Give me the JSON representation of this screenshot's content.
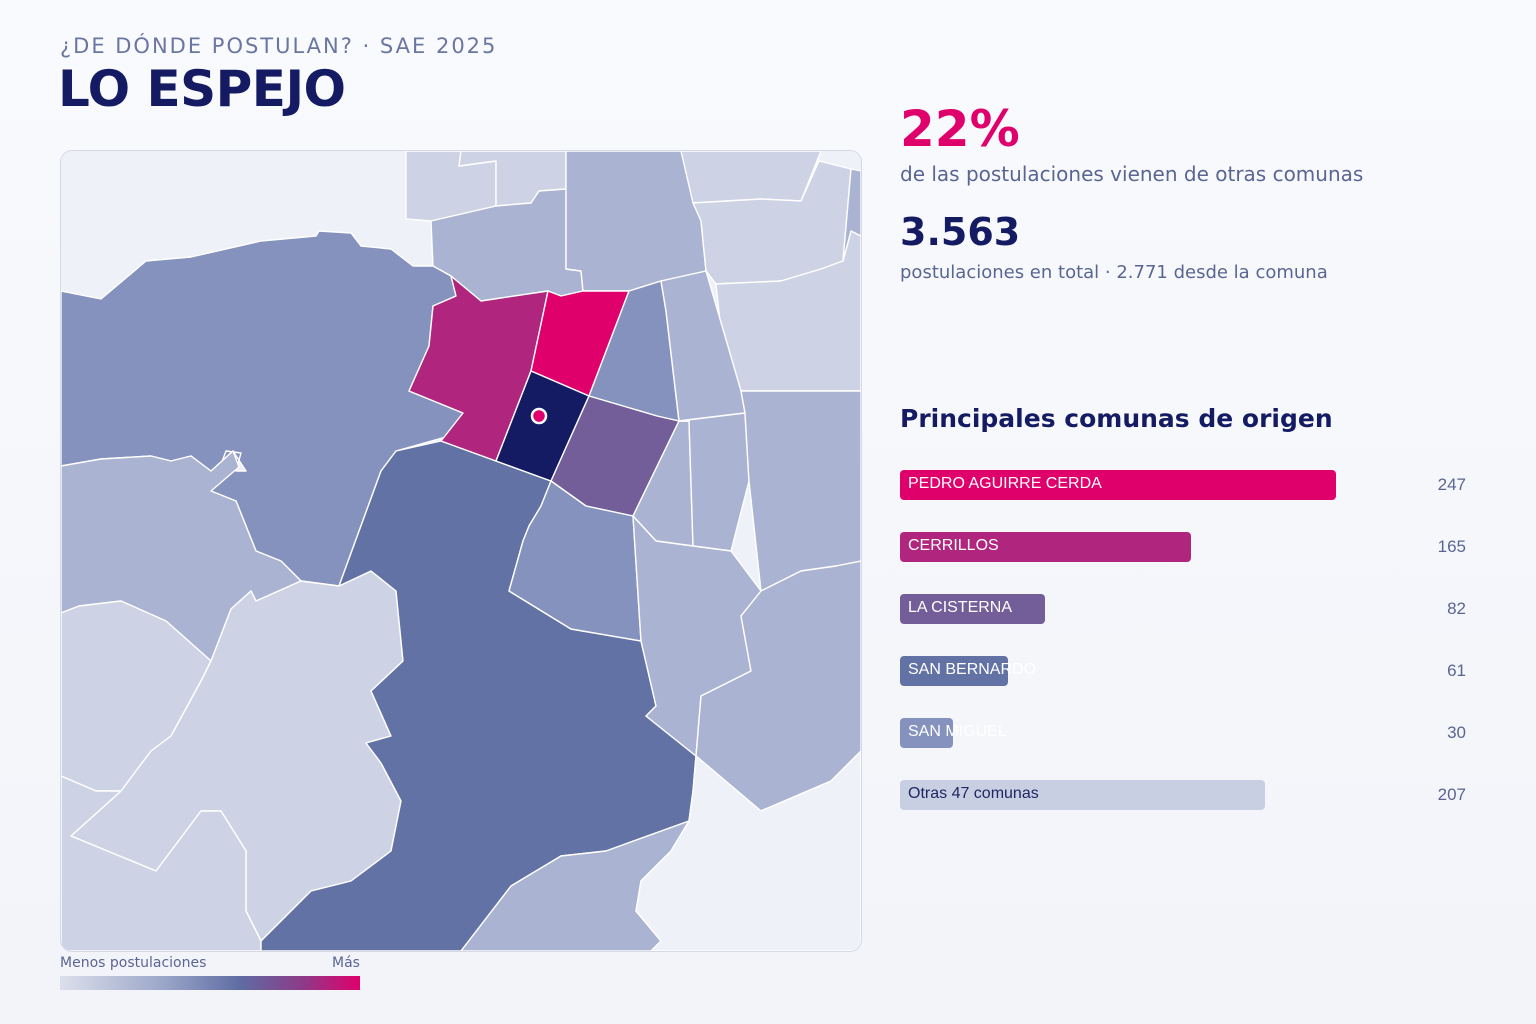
{
  "header": {
    "kicker": "¿DE DÓNDE POSTULAN? · SAE 2025",
    "title": "LO ESPEJO"
  },
  "stats": {
    "external_pct": "22%",
    "external_text": "de las postulaciones vienen de otras comunas",
    "total": "3.563",
    "total_text": "postulaciones en total · 2.771 desde la comuna"
  },
  "ranking": {
    "title": "Principales comunas de origen",
    "items": [
      {
        "label": "PEDRO AGUIRRE CERDA",
        "value": 247,
        "display": "247",
        "color": "#e0006c"
      },
      {
        "label": "CERRILLOS",
        "value": 165,
        "display": "165",
        "color": "#b0267e"
      },
      {
        "label": "LA CISTERNA",
        "value": 82,
        "display": "82",
        "color": "#735e9a"
      },
      {
        "label": "SAN BERNARDO",
        "value": 61,
        "display": "61",
        "color": "#6272a4"
      },
      {
        "label": "SAN MIGUEL",
        "value": 30,
        "display": "30",
        "color": "#8592bd"
      },
      {
        "label": "Otras 47 comunas",
        "value": 207,
        "display": "207",
        "color": "#c9cfe2",
        "dark_label": true
      }
    ]
  },
  "legend": {
    "low": "Menos postulaciones",
    "high": "Más"
  },
  "map_colors": {
    "highlight_comuna": "#141b63",
    "level_max": "#e0006c",
    "level_high": "#b0267e",
    "level_mid": "#735e9a",
    "level_4": "#6272a4",
    "level_3": "#8592bd",
    "level_2": "#aab3d1",
    "level_1": "#cdd3e4",
    "background": "#eef1f8"
  }
}
